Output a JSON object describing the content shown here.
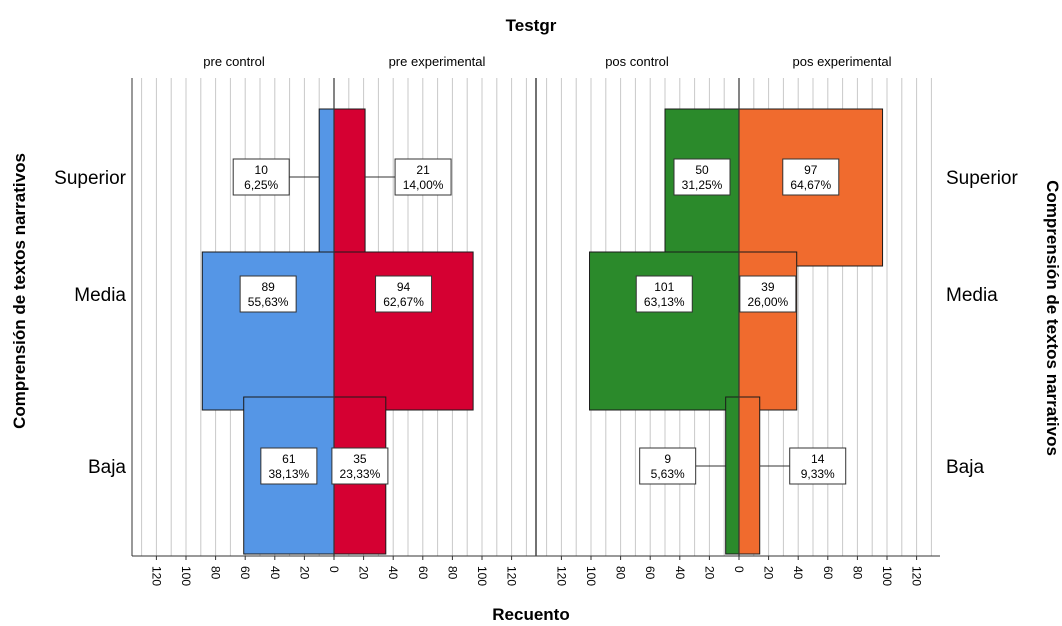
{
  "chart_data": {
    "type": "bar",
    "title": "Testgr",
    "xlabel": "Recuento",
    "ylabel": "Comprensión de textos narrativos",
    "ylabel_right": "Comprensión de textos narrativos",
    "categories": [
      "Superior",
      "Media",
      "Baja"
    ],
    "tick_labels": [
      "120",
      "100",
      "80",
      "60",
      "40",
      "20",
      "0"
    ],
    "panels": [
      {
        "name": "pre",
        "series": [
          {
            "name": "pre control",
            "direction": "left",
            "color": "#5596e6",
            "values": [
              10,
              89,
              61
            ],
            "labels": [
              "6,25%",
              "55,63%",
              "38,13%"
            ]
          },
          {
            "name": "pre experimental",
            "direction": "right",
            "color": "#d50032",
            "values": [
              21,
              94,
              35
            ],
            "labels": [
              "14,00%",
              "62,67%",
              "23,33%"
            ]
          }
        ]
      },
      {
        "name": "pos",
        "series": [
          {
            "name": "pos control",
            "direction": "left",
            "color": "#2b8a2b",
            "values": [
              50,
              101,
              9
            ],
            "labels": [
              "31,25%",
              "63,13%",
              "5,63%"
            ]
          },
          {
            "name": "pos experimental",
            "direction": "right",
            "color": "#f06b2e",
            "values": [
              97,
              39,
              14
            ],
            "labels": [
              "64,67%",
              "26,00%",
              "9,33%"
            ]
          }
        ]
      }
    ],
    "xlim": [
      0,
      130
    ],
    "grid": true,
    "gridline_step": 10
  }
}
